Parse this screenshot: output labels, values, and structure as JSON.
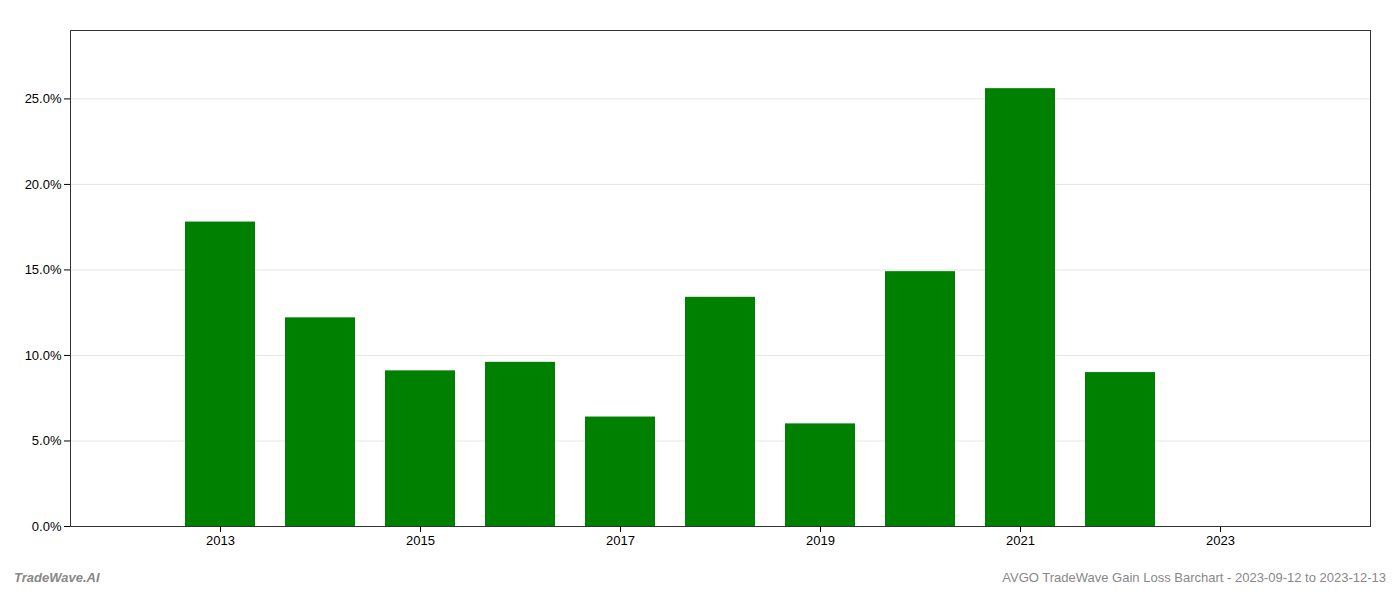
{
  "chart_data": {
    "type": "bar",
    "x": [
      2013,
      2014,
      2015,
      2016,
      2017,
      2018,
      2019,
      2020,
      2021,
      2022
    ],
    "values": [
      0.178,
      0.122,
      0.091,
      0.096,
      0.064,
      0.134,
      0.06,
      0.149,
      0.256,
      0.09
    ],
    "color": "#008000",
    "xlim": [
      2011.5,
      2024.5
    ],
    "xticks": [
      2013,
      2015,
      2017,
      2019,
      2021,
      2023
    ],
    "ylim": [
      0,
      0.29
    ],
    "yticks": [
      {
        "value": 0.0,
        "label": "0.0%"
      },
      {
        "value": 0.05,
        "label": "5.0%"
      },
      {
        "value": 0.1,
        "label": "10.0%"
      },
      {
        "value": 0.15,
        "label": "15.0%"
      },
      {
        "value": 0.2,
        "label": "20.0%"
      },
      {
        "value": 0.25,
        "label": "25.0%"
      }
    ],
    "grid": true,
    "annotations": [
      "TradeWave.AI",
      "AVGO TradeWave Gain Loss Barchart - 2023-09-12 to 2023-12-13"
    ]
  }
}
